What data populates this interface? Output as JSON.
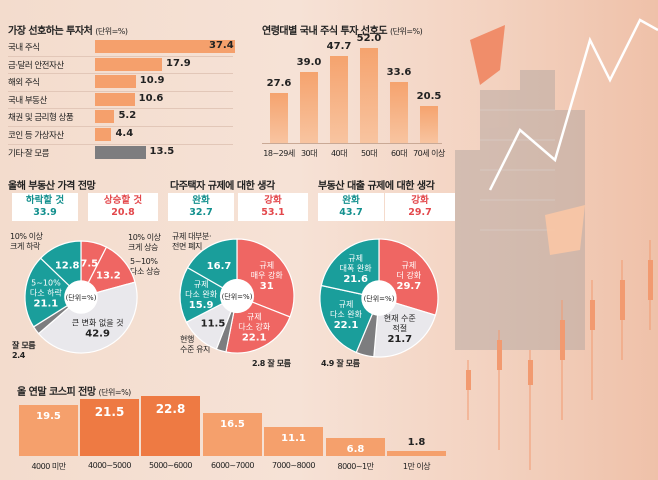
{
  "colors": {
    "orange": "#f5a06c",
    "orange_dark": "#ee7a43",
    "gray": "#7d7d7f",
    "teal": "#1a9e9b",
    "red": "#ef6663",
    "light": "#e9e8ec"
  },
  "chart_data": [
    {
      "type": "bar",
      "orientation": "horizontal",
      "title": "가장 선호하는 투자처",
      "unit": "(단위=%)",
      "categories": [
        "국내 주식",
        "금·달러 안전자산",
        "해외 주식",
        "국내 부동산",
        "채권 및 금리형 상품",
        "코인 등 가상자산",
        "기타·잘 모름"
      ],
      "values": [
        37.4,
        17.9,
        10.9,
        10.6,
        5.2,
        4.4,
        13.5
      ],
      "xlim": [
        0,
        37.4
      ]
    },
    {
      "type": "bar",
      "title": "연령대별 국내 주식 투자 선호도",
      "unit": "(단위=%)",
      "categories": [
        "18~29세",
        "30대",
        "40대",
        "50대",
        "60대",
        "70세 이상"
      ],
      "values": [
        27.6,
        39.0,
        47.7,
        52.0,
        33.6,
        20.5
      ],
      "ylim": [
        0,
        52
      ]
    },
    {
      "type": "pie",
      "title": "올해 부동산 가격 전망",
      "center_label": "(단위=%)",
      "summary": [
        {
          "label": "하락할 것",
          "value": "33.9",
          "tone": "teal"
        },
        {
          "label": "상승할 것",
          "value": "20.8",
          "tone": "red"
        }
      ],
      "slices": [
        {
          "name": "10% 이상 크게 상승",
          "value": 7.5,
          "label": "",
          "color": "red"
        },
        {
          "name": "5~10% 다소 상승",
          "value": 13.2,
          "label": "",
          "color": "red"
        },
        {
          "name": "큰 변화 없을 것",
          "value": 42.9,
          "label": "큰 변화 없을 것",
          "color": "light"
        },
        {
          "name": "잘 모름",
          "value": 2.4,
          "label": "",
          "color": "gray",
          "hide_value": true
        },
        {
          "name": "5~10% 다소 하락",
          "value": 21.1,
          "label": "5~10%|다소 하락",
          "color": "teal"
        },
        {
          "name": "10% 이상 크게 하락",
          "value": 12.8,
          "label": "",
          "color": "teal"
        }
      ],
      "outside_labels": [
        "10% 이상|크게 하락",
        "10% 이상|크게 상승",
        "5~10%|다소 상승",
        "잘 모름|2.4"
      ]
    },
    {
      "type": "pie",
      "title": "다주택자 규제에 대한 생각",
      "center_label": "(단위=%)",
      "summary": [
        {
          "label": "완화",
          "value": "32.7",
          "tone": "teal"
        },
        {
          "label": "강화",
          "value": "53.1",
          "tone": "red"
        }
      ],
      "slices": [
        {
          "name": "규제 매우 강화",
          "value": 31,
          "label": "규제|매우 강화",
          "color": "red"
        },
        {
          "name": "규제 다소 강화",
          "value": 22.1,
          "label": "규제|다소 강화",
          "color": "red"
        },
        {
          "name": "잘 모름",
          "value": 2.8,
          "label": "",
          "color": "gray",
          "hide_value": true
        },
        {
          "name": "현행 수준 유지",
          "value": 11.5,
          "label": "",
          "color": "light"
        },
        {
          "name": "규제 다소 완화",
          "value": 15.9,
          "label": "규제|다소 완화",
          "color": "teal"
        },
        {
          "name": "규제 대부분·전면 폐지",
          "value": 16.7,
          "label": "",
          "color": "teal"
        }
      ],
      "outside_labels": [
        "규제 대부분·|전면 폐지",
        "현행|수준 유지",
        "2.8 잘 모름"
      ]
    },
    {
      "type": "pie",
      "title": "부동산 대출 규제에 대한 생각",
      "center_label": "(단위=%)",
      "summary": [
        {
          "label": "완화",
          "value": "43.7",
          "tone": "teal"
        },
        {
          "label": "강화",
          "value": "29.7",
          "tone": "red"
        }
      ],
      "slices": [
        {
          "name": "규제 더 강화",
          "value": 29.7,
          "label": "규제|더 강화",
          "color": "red"
        },
        {
          "name": "현재 수준 적절",
          "value": 21.7,
          "label": "현재 수준|적절",
          "color": "light"
        },
        {
          "name": "잘 모름",
          "value": 4.9,
          "label": "",
          "color": "gray",
          "hide_value": true
        },
        {
          "name": "규제 다소 완화",
          "value": 22.1,
          "label": "규제|다소 완화",
          "color": "teal"
        },
        {
          "name": "규제 대폭 완화",
          "value": 21.6,
          "label": "규제|대폭 완화",
          "color": "teal"
        }
      ],
      "outside_labels": [
        "4.9 잘 모름"
      ]
    },
    {
      "type": "bar",
      "title": "올 연말 코스피 전망",
      "unit": "(단위=%)",
      "categories": [
        "4000 미만",
        "4000~5000",
        "5000~6000",
        "6000~7000",
        "7000~8000",
        "8000~1만",
        "1만 이상"
      ],
      "values": [
        19.5,
        21.5,
        22.8,
        16.5,
        11.1,
        6.8,
        1.8
      ],
      "highlight": [
        1,
        2
      ],
      "ylim": [
        0,
        22.8
      ]
    }
  ]
}
